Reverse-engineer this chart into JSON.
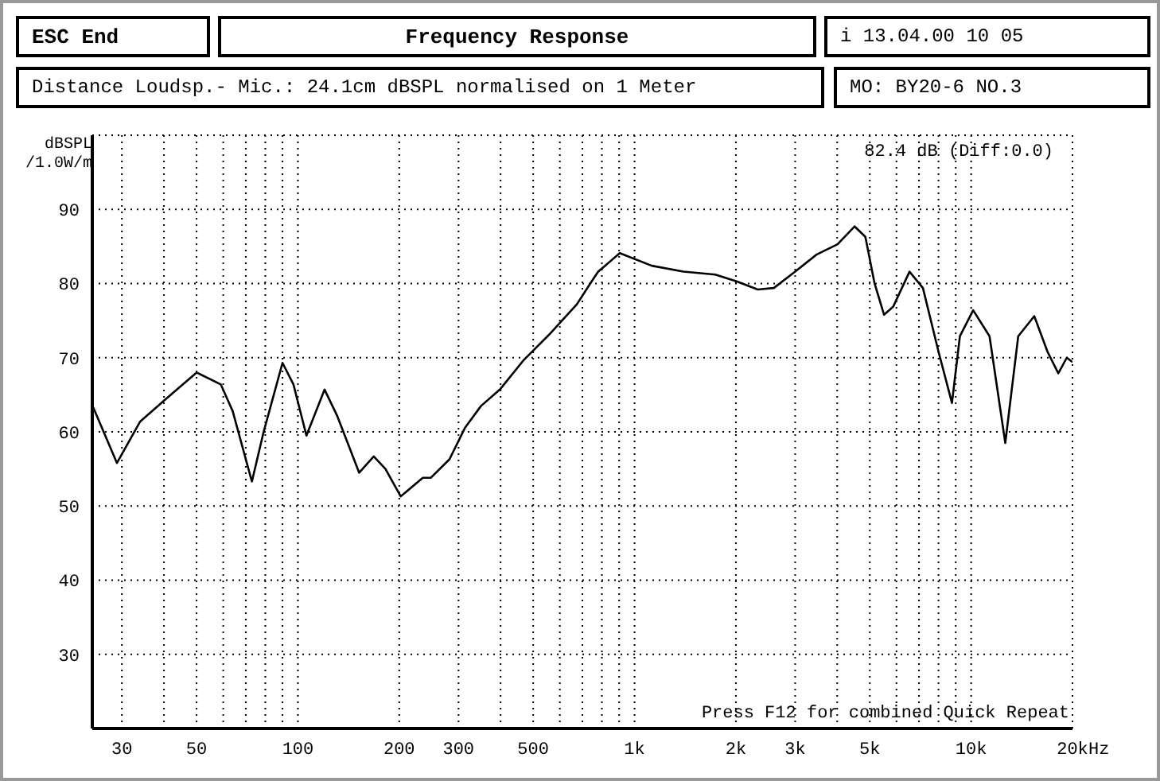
{
  "chart_data": {
    "type": "line",
    "title": "Frequency Response",
    "subtitle": "Distance Loudsp.- Mic.: 24.1cm dBSPL normalised on 1 Meter",
    "ylabel": "dBSPL /1.0W/m",
    "annotations": [
      "ESC End",
      "i 13.04.00 10 05",
      "MO: BY20-6 NO.3",
      "82.4 dB (Diff:0.0)",
      "Press F12 for combined Quick Repeat"
    ],
    "xlabel": "Hz",
    "log": "x",
    "grid": true,
    "marker": "none",
    "line_style": "solid",
    "xlim": [
      24.5,
      20000
    ],
    "ylim": [
      20,
      100
    ],
    "yticks": [
      30,
      40,
      50,
      60,
      70,
      80,
      90
    ],
    "xticks": [
      30,
      {
        "value": 40,
        "label": null
      },
      50,
      {
        "value": 60,
        "label": null
      },
      {
        "value": 70,
        "label": null
      },
      {
        "value": 80,
        "label": null
      },
      {
        "value": 90,
        "label": null
      },
      100,
      200,
      300,
      {
        "value": 400,
        "label": null
      },
      500,
      {
        "value": 600,
        "label": null
      },
      {
        "value": 700,
        "label": null
      },
      {
        "value": 800,
        "label": null
      },
      {
        "value": 900,
        "label": null
      },
      {
        "value": 1000,
        "label": "1k"
      },
      {
        "value": 2000,
        "label": "2k"
      },
      {
        "value": 3000,
        "label": "3k"
      },
      {
        "value": 4000,
        "label": null
      },
      {
        "value": 5000,
        "label": "5k"
      },
      {
        "value": 6000,
        "label": null
      },
      {
        "value": 7000,
        "label": null
      },
      {
        "value": 8000,
        "label": null
      },
      {
        "value": 9000,
        "label": null
      },
      {
        "value": 10000,
        "label": "10k"
      },
      {
        "value": 20000,
        "label": "20k"
      }
    ],
    "x": [
      24.5,
      29,
      34,
      40,
      50,
      59,
      64,
      73,
      79,
      90,
      97,
      106,
      120,
      131,
      152,
      168,
      182,
      202,
      235,
      248,
      282,
      314,
      350,
      398,
      469,
      563,
      674,
      746,
      780,
      904,
      1125,
      1397,
      1738,
      2009,
      2323,
      2593,
      3000,
      3472,
      4010,
      4508,
      4850,
      5160,
      5510,
      5870,
      6560,
      7190,
      8000,
      8770,
      9260,
      10140,
      11340,
      12630,
      13800,
      15400,
      16860,
      18150,
      19240,
      20000
    ],
    "series": [
      {
        "color": "#000000",
        "values": [
          63.6,
          55.8,
          61.4,
          64.2,
          68.0,
          66.4,
          62.8,
          53.3,
          59.9,
          69.3,
          66.4,
          59.5,
          65.7,
          62.1,
          54.5,
          56.7,
          55.0,
          51.3,
          53.8,
          53.8,
          56.3,
          60.6,
          63.5,
          65.7,
          69.7,
          73.3,
          77.2,
          80.3,
          81.6,
          84.1,
          82.4,
          81.6,
          81.2,
          80.3,
          79.2,
          79.4,
          81.6,
          83.9,
          85.3,
          87.7,
          86.3,
          80.1,
          75.8,
          76.9,
          81.6,
          79.4,
          70.8,
          63.9,
          72.9,
          76.4,
          72.9,
          58.5,
          72.9,
          75.6,
          70.8,
          67.9,
          70.0,
          69.4
        ]
      }
    ]
  }
}
